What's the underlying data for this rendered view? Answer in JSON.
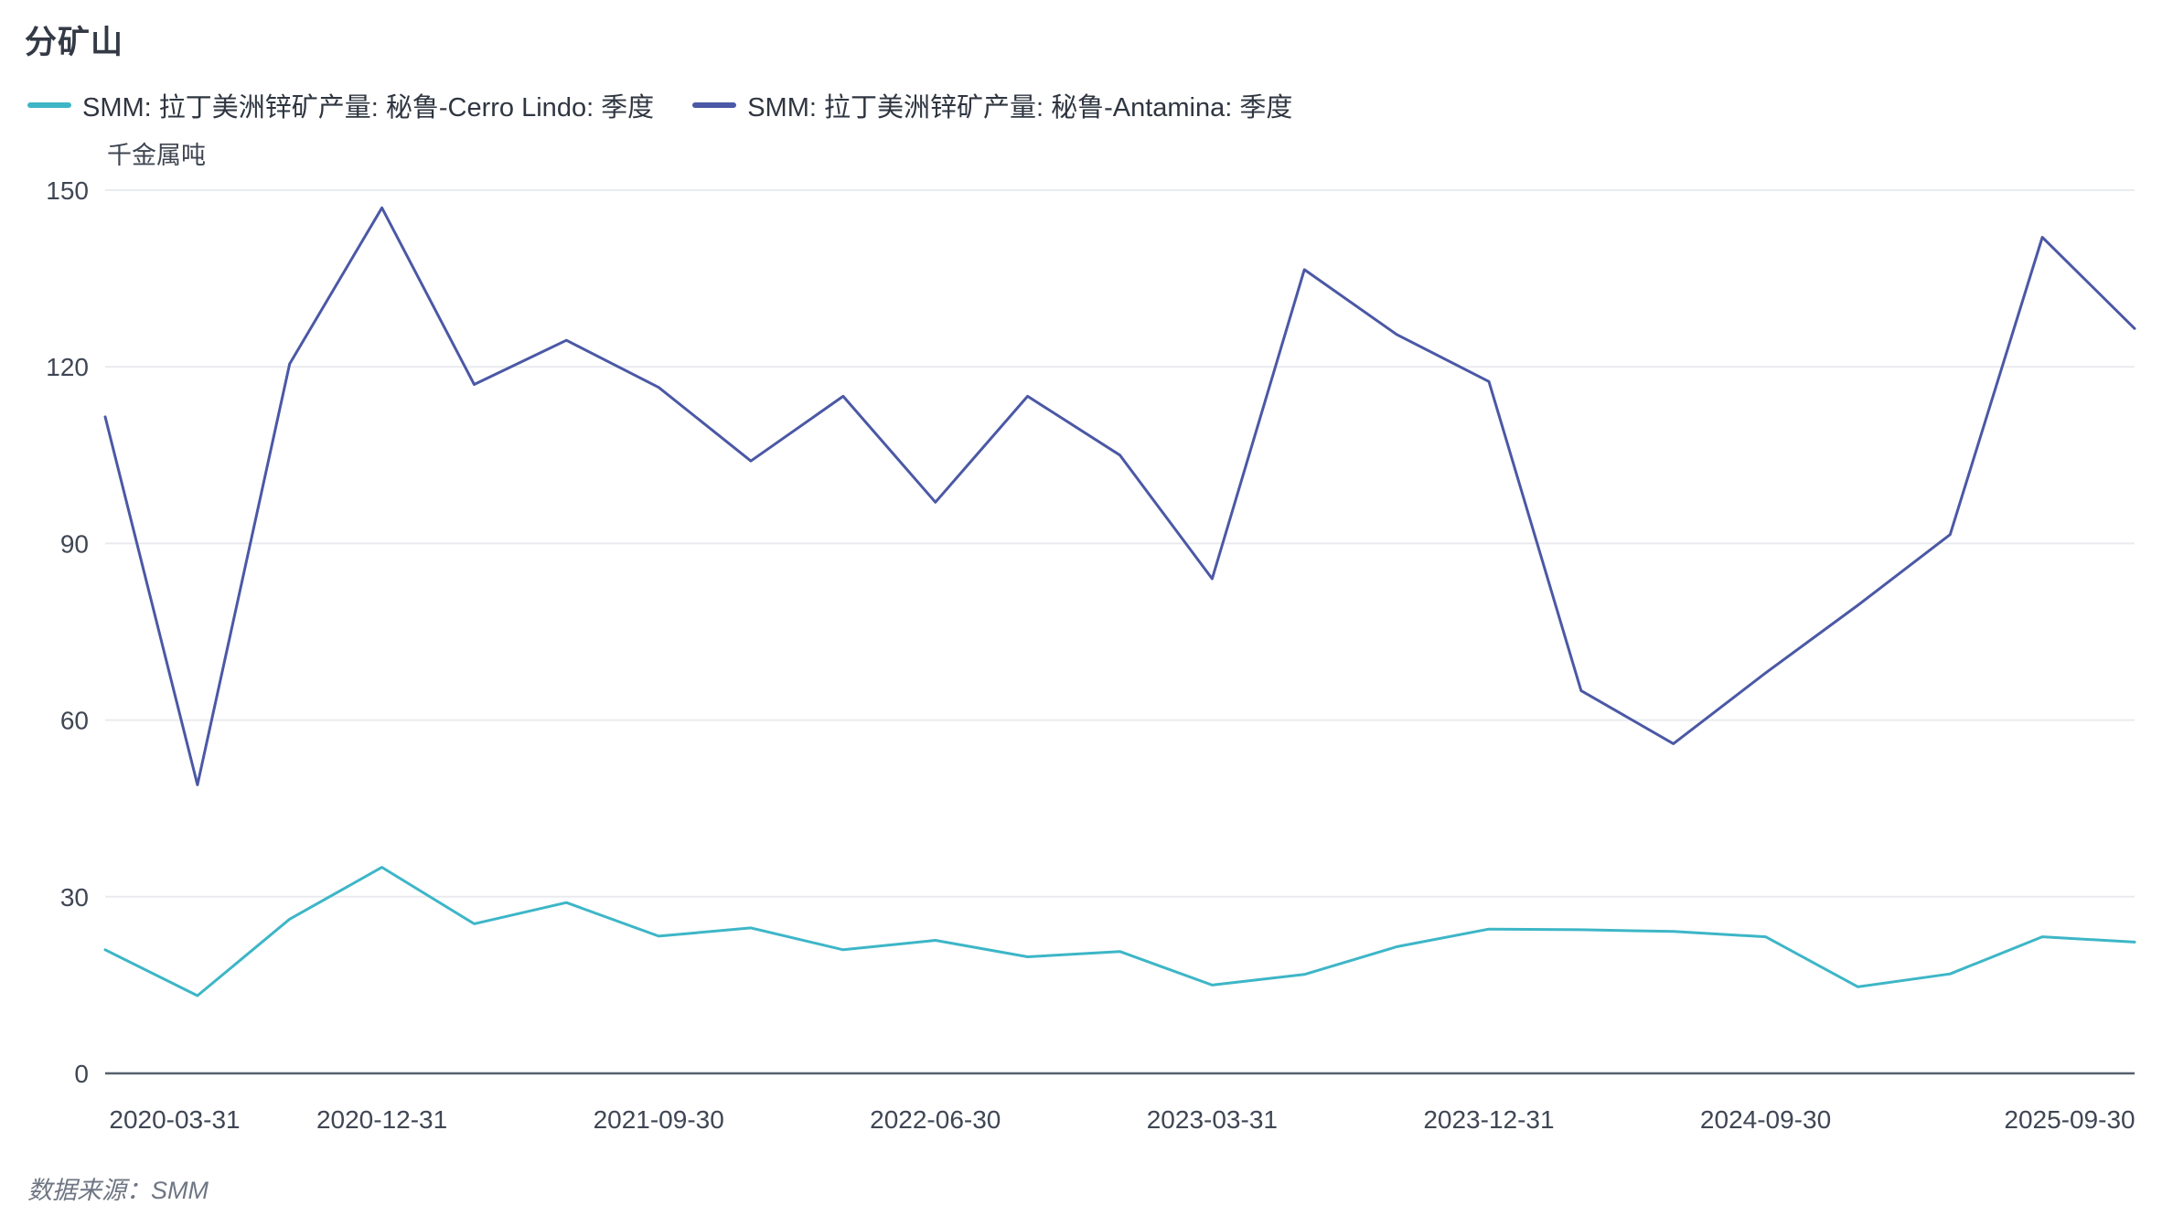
{
  "title": "分矿山",
  "legend": [
    {
      "label": "SMM: 拉丁美洲锌矿产量: 秘鲁-Cerro Lindo: 季度",
      "color": "#3db6c7"
    },
    {
      "label": "SMM: 拉丁美洲锌矿产量: 秘鲁-Antamina: 季度",
      "color": "#4b58a5"
    }
  ],
  "footer": {
    "source_label": "数据来源：SMM"
  },
  "colors": {
    "grid": "#e9ebef",
    "axis": "#565f6e",
    "tick_text": "#3f4654",
    "series_cerro_lindo": "#3db6c7",
    "series_antamina": "#4b58a5"
  },
  "chart_data": {
    "type": "line",
    "title": "分矿山",
    "xlabel": "",
    "ylabel": "千金属吨",
    "ylim": [
      0,
      150
    ],
    "y_ticks": [
      0,
      30,
      60,
      90,
      120,
      150
    ],
    "grid": true,
    "legend_position": "top-left",
    "x": [
      "2020-03-31",
      "2020-06-30",
      "2020-09-30",
      "2020-12-31",
      "2021-03-31",
      "2021-06-30",
      "2021-09-30",
      "2021-12-31",
      "2022-03-31",
      "2022-06-30",
      "2022-09-30",
      "2022-12-31",
      "2023-03-31",
      "2023-06-30",
      "2023-09-30",
      "2023-12-31",
      "2024-03-31",
      "2024-06-30",
      "2024-09-30",
      "2024-12-31",
      "2025-03-31",
      "2025-06-30",
      "2025-09-30"
    ],
    "x_label_indices": [
      0,
      3,
      6,
      9,
      12,
      15,
      18,
      22
    ],
    "x_tick_labels_shown": [
      "2020-03-31",
      "2020-12-31",
      "2021-09-30",
      "2022-06-30",
      "2023-03-31",
      "2023-12-31",
      "2024-09-30",
      "2025-09-30"
    ],
    "series": [
      {
        "name": "SMM: 拉丁美洲锌矿产量: 秘鲁-Cerro Lindo: 季度",
        "color": "#3db6c7",
        "values": [
          21.0,
          13.2,
          26.2,
          35.0,
          25.4,
          29.0,
          23.3,
          24.7,
          21.0,
          22.6,
          19.8,
          20.7,
          15.0,
          16.8,
          21.5,
          24.5,
          24.4,
          24.1,
          23.2,
          14.7,
          16.9,
          23.2,
          22.3
        ]
      },
      {
        "name": "SMM: 拉丁美洲锌矿产量: 秘鲁-Antamina: 季度",
        "color": "#4b58a5",
        "values": [
          111.5,
          49.0,
          120.5,
          147.0,
          117.0,
          124.5,
          116.5,
          104.0,
          115.0,
          97.0,
          115.0,
          105.0,
          84.0,
          136.5,
          125.5,
          117.5,
          65.0,
          56.0,
          68.0,
          79.5,
          91.5,
          142.0,
          126.5
        ]
      }
    ]
  }
}
